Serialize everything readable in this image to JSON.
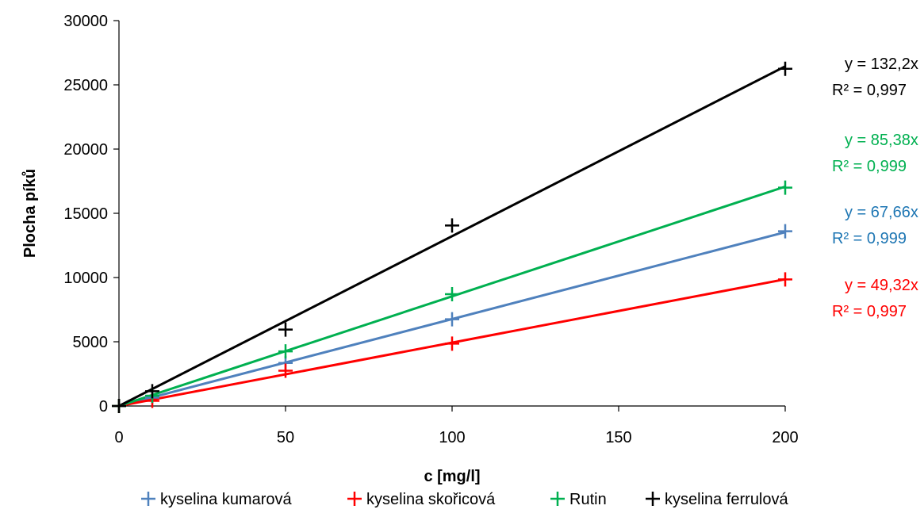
{
  "chart_data": {
    "type": "scatter",
    "title": "",
    "xlabel": "c [mg/l]",
    "ylabel": "Plocha píků",
    "xlim": [
      0,
      200
    ],
    "ylim": [
      0,
      30000
    ],
    "x_ticks": [
      0,
      50,
      100,
      150,
      200
    ],
    "y_ticks": [
      0,
      5000,
      10000,
      15000,
      20000,
      25000,
      30000
    ],
    "x_tick_labels": [
      "0",
      "50",
      "100",
      "150",
      "200"
    ],
    "y_tick_labels": [
      "0",
      "5000",
      "10000",
      "15000",
      "20000",
      "25000",
      "30000"
    ],
    "grid": false,
    "legend_position": "bottom",
    "marker": "plus",
    "series": [
      {
        "name": "kyselina kumarová",
        "color": "#4f81bd",
        "x": [
          0,
          10,
          50,
          100,
          200
        ],
        "y": [
          0,
          650,
          3350,
          6750,
          13600
        ],
        "trendline": {
          "slope": 67.66,
          "equation": "y = 67,66x",
          "r2": "R² = 0,999",
          "label_color": "#1f77b4"
        }
      },
      {
        "name": "kyselina skořicová",
        "color": "#ff0000",
        "x": [
          0,
          10,
          50,
          100,
          200
        ],
        "y": [
          0,
          400,
          2750,
          4850,
          9850
        ],
        "trendline": {
          "slope": 49.32,
          "equation": "y = 49,32x",
          "r2": "R² = 0,997",
          "label_color": "#ff0000"
        }
      },
      {
        "name": "Rutin",
        "color": "#00b050",
        "x": [
          0,
          10,
          50,
          100,
          200
        ],
        "y": [
          0,
          800,
          4250,
          8700,
          17000
        ],
        "trendline": {
          "slope": 85.38,
          "equation": "y = 85,38x",
          "r2": "R² = 0,999",
          "label_color": "#00b050"
        }
      },
      {
        "name": "kyselina ferrulová",
        "color": "#000000",
        "x": [
          0,
          10,
          50,
          100,
          200
        ],
        "y": [
          0,
          1150,
          5950,
          14050,
          26250
        ],
        "trendline": {
          "slope": 132.2,
          "equation": "y = 132,2x",
          "r2": "R² = 0,997",
          "label_color": "#000000"
        }
      }
    ]
  }
}
